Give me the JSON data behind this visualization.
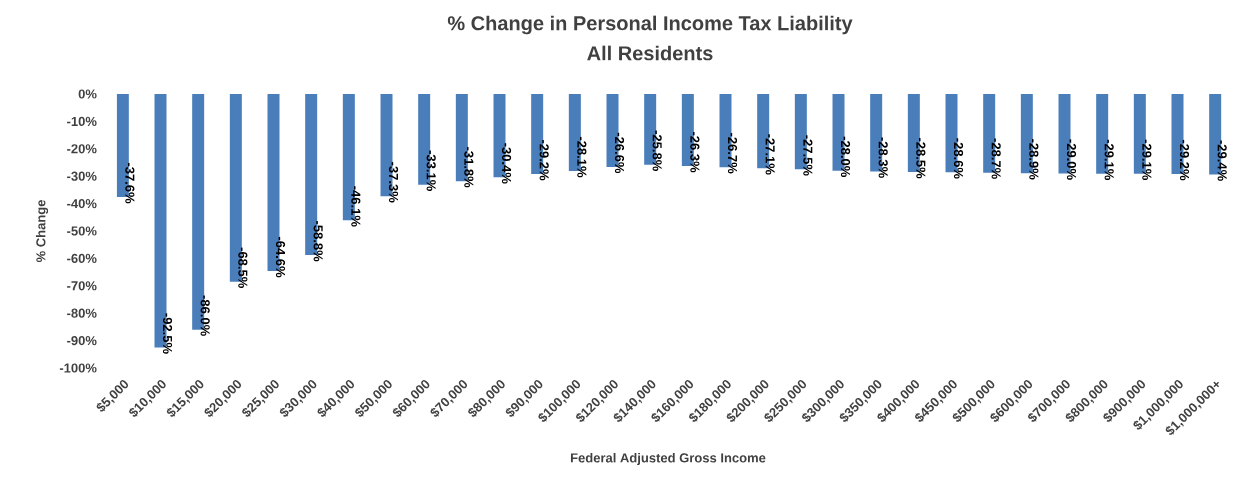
{
  "chart_data": {
    "type": "bar",
    "title": "% Change in Personal Income Tax Liability",
    "subtitle": "All Residents",
    "xlabel": "Federal Adjusted Gross Income",
    "ylabel": "% Change",
    "color": "#4a7ebb",
    "categories": [
      "$5,000",
      "$10,000",
      "$15,000",
      "$20,000",
      "$25,000",
      "$30,000",
      "$40,000",
      "$50,000",
      "$60,000",
      "$70,000",
      "$80,000",
      "$90,000",
      "$100,000",
      "$120,000",
      "$140,000",
      "$160,000",
      "$180,000",
      "$200,000",
      "$250,000",
      "$300,000",
      "$350,000",
      "$400,000",
      "$450,000",
      "$500,000",
      "$600,000",
      "$700,000",
      "$800,000",
      "$900,000",
      "$1,000,000",
      "$1,000,000+"
    ],
    "values": [
      -37.6,
      -92.5,
      -86.0,
      -68.5,
      -64.6,
      -58.8,
      -46.1,
      -37.3,
      -33.1,
      -31.8,
      -30.4,
      -29.2,
      -28.1,
      -26.6,
      -25.8,
      -26.3,
      -26.7,
      -27.1,
      -27.5,
      -28.0,
      -28.3,
      -28.5,
      -28.6,
      -28.7,
      -28.9,
      -29.0,
      -29.1,
      -29.1,
      -29.2,
      -29.4
    ],
    "value_labels": [
      "-37.6%",
      "-92.5%",
      "-86.0%",
      "-68.5%",
      "-64.6%",
      "-58.8%",
      "-46.1%",
      "-37.3%",
      "-33.1%",
      "-31.8%",
      "-30.4%",
      "-29.2%",
      "-28.1%",
      "-26.6%",
      "-25.8%",
      "-26.3%",
      "-26.7%",
      "-27.1%",
      "-27.5%",
      "-28.0%",
      "-28.3%",
      "-28.5%",
      "-28.6%",
      "-28.7%",
      "-28.9%",
      "-29.0%",
      "-29.1%",
      "-29.1%",
      "-29.2%",
      "-29.4%"
    ],
    "ylim": [
      -100,
      0
    ],
    "yticks": [
      {
        "value": -100,
        "label": "-100%"
      },
      {
        "value": -90,
        "label": "-90%"
      },
      {
        "value": -80,
        "label": "-80%"
      },
      {
        "value": -70,
        "label": "-70%"
      },
      {
        "value": -60,
        "label": "-60%"
      },
      {
        "value": -50,
        "label": "-50%"
      },
      {
        "value": -40,
        "label": "-40%"
      },
      {
        "value": -30,
        "label": "-30%"
      },
      {
        "value": -20,
        "label": "-20%"
      },
      {
        "value": -10,
        "label": "-10%"
      },
      {
        "value": 0,
        "label": "0%"
      }
    ],
    "grid": false
  }
}
